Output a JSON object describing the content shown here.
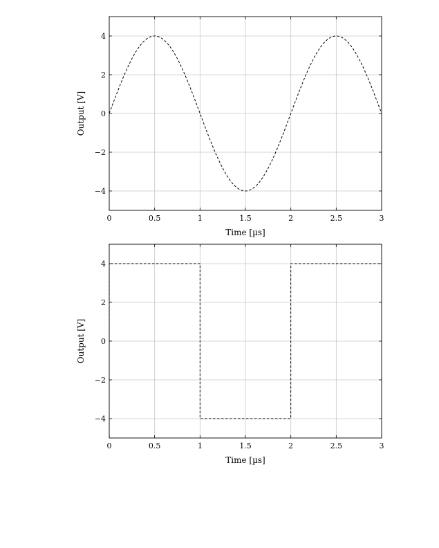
{
  "chart_data": [
    {
      "type": "line",
      "waveform": "sine",
      "xlabel": "Time [µs]",
      "ylabel": "Output [V]",
      "xlim": [
        0,
        3
      ],
      "ylim": [
        -5,
        5
      ],
      "xticks": [
        0,
        0.5,
        1,
        1.5,
        2,
        2.5,
        3
      ],
      "yticks": [
        -4,
        -2,
        0,
        2,
        4
      ],
      "xtick_labels": [
        "0",
        "0.5",
        "1",
        "1.5",
        "2",
        "2.5",
        "3"
      ],
      "ytick_labels": [
        "−4",
        "−2",
        "0",
        "2",
        "4"
      ],
      "grid": true,
      "line_style": "dashed",
      "line_color": "#000000",
      "amplitude": 4,
      "period": 2,
      "series": [
        {
          "x": [
            0,
            0.1,
            0.2,
            0.3,
            0.4,
            0.5,
            0.6,
            0.7,
            0.8,
            0.9,
            1.0,
            1.1,
            1.2,
            1.3,
            1.4,
            1.5,
            1.6,
            1.7,
            1.8,
            1.9,
            2.0,
            2.1,
            2.2,
            2.3,
            2.4,
            2.5,
            2.6,
            2.7,
            2.8,
            2.9,
            3.0
          ],
          "y": [
            0,
            1.24,
            2.35,
            3.24,
            3.8,
            4.0,
            3.8,
            3.24,
            2.35,
            1.24,
            0,
            -1.24,
            -2.35,
            -3.24,
            -3.8,
            -4.0,
            -3.8,
            -3.24,
            -2.35,
            -1.24,
            0,
            1.24,
            2.35,
            3.24,
            3.8,
            4.0,
            3.8,
            3.24,
            2.35,
            1.24,
            0
          ]
        }
      ]
    },
    {
      "type": "line",
      "waveform": "square",
      "xlabel": "Time [µs]",
      "ylabel": "Output [V]",
      "xlim": [
        0,
        3
      ],
      "ylim": [
        -5,
        5
      ],
      "xticks": [
        0,
        0.5,
        1,
        1.5,
        2,
        2.5,
        3
      ],
      "yticks": [
        -4,
        -2,
        0,
        2,
        4
      ],
      "xtick_labels": [
        "0",
        "0.5",
        "1",
        "1.5",
        "2",
        "2.5",
        "3"
      ],
      "ytick_labels": [
        "−4",
        "−2",
        "0",
        "2",
        "4"
      ],
      "grid": true,
      "line_style": "dashed",
      "line_color": "#000000",
      "series": [
        {
          "x": [
            0,
            0,
            1,
            1,
            2,
            2,
            3
          ],
          "y": [
            0,
            4,
            4,
            -4,
            -4,
            4,
            4
          ]
        }
      ]
    }
  ]
}
